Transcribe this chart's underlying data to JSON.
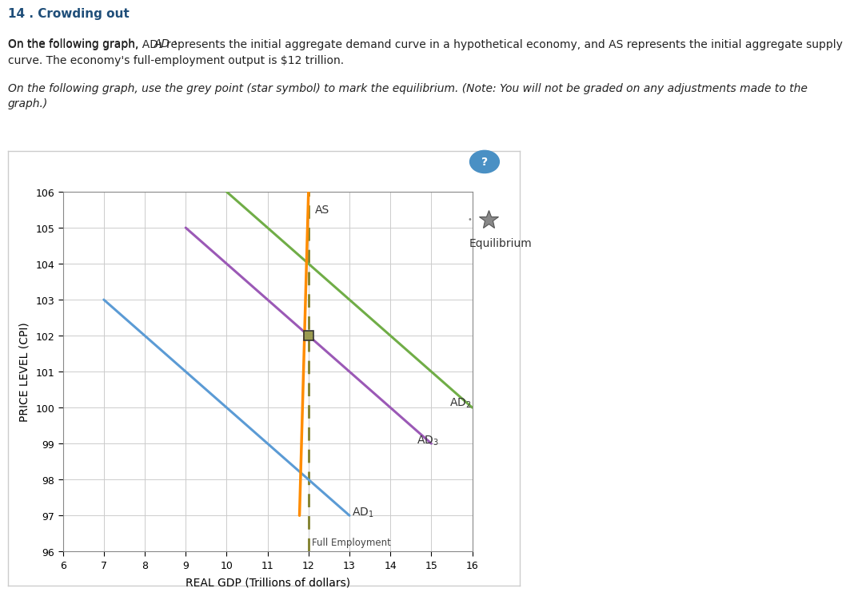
{
  "title": "14 . Crowding out",
  "text1_part1": "On the following graph, ",
  "text1_ad1": "AD",
  "text1_part2": " represents the initial aggregate demand curve in a hypothetical economy, and ",
  "text1_as": "AS",
  "text1_part3": " represents the initial aggregate supply\ncurve. The economy's full-employment output is $12 trillion.",
  "text2": "On the following graph, use the grey point (star symbol) to mark the equilibrium. (",
  "text2_bold": "Note",
  "text2_end": ": You will not be graded on any adjustments made to the\ngraph.)",
  "xlabel": "REAL GDP (Trillions of dollars)",
  "ylabel": "PRICE LEVEL (CPI)",
  "xlim": [
    6,
    16
  ],
  "ylim": [
    96,
    106
  ],
  "xticks": [
    6,
    7,
    8,
    9,
    10,
    11,
    12,
    13,
    14,
    15,
    16
  ],
  "yticks": [
    96,
    97,
    98,
    99,
    100,
    101,
    102,
    103,
    104,
    105,
    106
  ],
  "full_employment_x": 12,
  "AS_color": "#FF8C00",
  "AS_points": [
    [
      11.78,
      97
    ],
    [
      12.0,
      106
    ]
  ],
  "AD1_color": "#5B9BD5",
  "AD1_points": [
    [
      7,
      103
    ],
    [
      13,
      97
    ]
  ],
  "AD2_color": "#70AD47",
  "AD2_points": [
    [
      10,
      106
    ],
    [
      16,
      100
    ]
  ],
  "AD3_color": "#9B59B6",
  "AD3_points": [
    [
      9,
      105
    ],
    [
      15,
      99
    ]
  ],
  "full_employ_color": "#7F7F2A",
  "equilibrium_x": 12,
  "equilibrium_y": 102,
  "bg_color": "#FFFFFF",
  "plot_bg_color": "#FFFFFF",
  "grid_color": "#CCCCCC",
  "tab_bar_color": "#C8B89A",
  "outer_border_color": "#CCCCCC",
  "text_color": "#222222",
  "title_color": "#1F4E79",
  "question_circle_color": "#4A90C4"
}
